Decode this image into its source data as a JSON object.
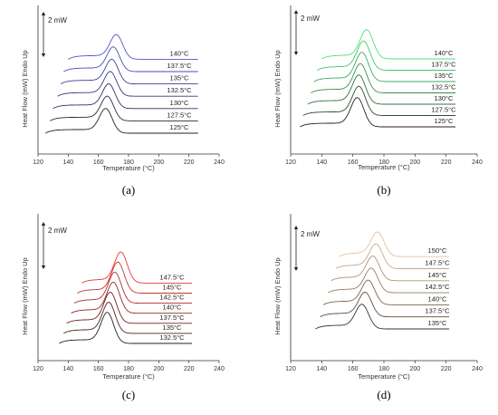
{
  "chart_data": [
    {
      "type": "line",
      "panel_label": "(a)",
      "xlabel": "Temperature (°C)",
      "ylabel": "Heat Flow (mW) Endo Up",
      "xlim": [
        120,
        240
      ],
      "xticks": [
        120,
        140,
        160,
        180,
        200,
        220,
        240
      ],
      "scale_bar": "2 mW",
      "yticks": "none",
      "grid": false,
      "series": [
        {
          "name": "125°C",
          "start_x": 125,
          "peak_x": 165,
          "end_x": 226,
          "color": "#222222"
        },
        {
          "name": "127.5°C",
          "start_x": 128,
          "peak_x": 166,
          "end_x": 226,
          "color": "#2a2a40"
        },
        {
          "name": "130°C",
          "start_x": 130,
          "peak_x": 167,
          "end_x": 226,
          "color": "#303060"
        },
        {
          "name": "132.5°C",
          "start_x": 133,
          "peak_x": 168,
          "end_x": 226,
          "color": "#38387e"
        },
        {
          "name": "135°C",
          "start_x": 135,
          "peak_x": 169,
          "end_x": 226,
          "color": "#40409a"
        },
        {
          "name": "137.5°C",
          "start_x": 137,
          "peak_x": 170,
          "end_x": 226,
          "color": "#4a4ab4"
        },
        {
          "name": "140°C",
          "start_x": 140,
          "peak_x": 172,
          "end_x": 226,
          "color": "#5555cc"
        }
      ]
    },
    {
      "type": "line",
      "panel_label": "(b)",
      "xlabel": "Temperature (°C)",
      "ylabel": "Heat Flow (mW) Endo Up",
      "xlim": [
        120,
        240
      ],
      "xticks": [
        120,
        140,
        160,
        180,
        200,
        220,
        240
      ],
      "scale_bar": "2 mW",
      "yticks": "none",
      "grid": false,
      "series": [
        {
          "name": "125°C",
          "start_x": 126,
          "peak_x": 163,
          "end_x": 226,
          "color": "#222222"
        },
        {
          "name": "127.5°C",
          "start_x": 128,
          "peak_x": 164,
          "end_x": 226,
          "color": "#2d4a34"
        },
        {
          "name": "130°C",
          "start_x": 131,
          "peak_x": 164,
          "end_x": 226,
          "color": "#307040"
        },
        {
          "name": "132.5°C",
          "start_x": 133,
          "peak_x": 165,
          "end_x": 226,
          "color": "#35904c"
        },
        {
          "name": "135°C",
          "start_x": 135,
          "peak_x": 166,
          "end_x": 226,
          "color": "#3aae5a"
        },
        {
          "name": "137.5°C",
          "start_x": 137,
          "peak_x": 167,
          "end_x": 226,
          "color": "#40c868"
        },
        {
          "name": "140°C",
          "start_x": 140,
          "peak_x": 169,
          "end_x": 226,
          "color": "#4ee07a"
        }
      ]
    },
    {
      "type": "line",
      "panel_label": "(c)",
      "xlabel": "Temperature (°C)",
      "ylabel": "Heat Flow (mW) Endo Up",
      "xlim": [
        120,
        240
      ],
      "xticks": [
        120,
        140,
        160,
        180,
        200,
        220,
        240
      ],
      "scale_bar": "2 mW",
      "yticks": "none",
      "grid": false,
      "series": [
        {
          "name": "132.5°C",
          "start_x": 134,
          "peak_x": 166,
          "end_x": 222,
          "color": "#222222"
        },
        {
          "name": "135°C",
          "start_x": 137,
          "peak_x": 167,
          "end_x": 222,
          "color": "#4a2222"
        },
        {
          "name": "137.5°C",
          "start_x": 139,
          "peak_x": 168,
          "end_x": 222,
          "color": "#6e2424"
        },
        {
          "name": "140°C",
          "start_x": 142,
          "peak_x": 170,
          "end_x": 222,
          "color": "#902828"
        },
        {
          "name": "142.5°C",
          "start_x": 144,
          "peak_x": 171,
          "end_x": 222,
          "color": "#b02c2c"
        },
        {
          "name": "145°C",
          "start_x": 146,
          "peak_x": 173,
          "end_x": 222,
          "color": "#cc3232"
        },
        {
          "name": "147.5°C",
          "start_x": 149,
          "peak_x": 175,
          "end_x": 222,
          "color": "#e33a3a"
        }
      ]
    },
    {
      "type": "line",
      "panel_label": "(d)",
      "xlabel": "Temperature (°C)",
      "ylabel": "Heat Flow (mW) Endo Up",
      "xlim": [
        120,
        240
      ],
      "xticks": [
        120,
        140,
        160,
        180,
        200,
        220,
        240
      ],
      "scale_bar": "2 mW",
      "yticks": "none",
      "grid": false,
      "series": [
        {
          "name": "135°C",
          "start_x": 136,
          "peak_x": 166,
          "end_x": 222,
          "color": "#333333"
        },
        {
          "name": "137.5°C",
          "start_x": 139,
          "peak_x": 168,
          "end_x": 222,
          "color": "#5a4e44"
        },
        {
          "name": "140°C",
          "start_x": 141,
          "peak_x": 170,
          "end_x": 222,
          "color": "#7a6650"
        },
        {
          "name": "142.5°C",
          "start_x": 144,
          "peak_x": 172,
          "end_x": 222,
          "color": "#967e64"
        },
        {
          "name": "145°C",
          "start_x": 146,
          "peak_x": 173,
          "end_x": 222,
          "color": "#b09474"
        },
        {
          "name": "147.5°C",
          "start_x": 149,
          "peak_x": 175,
          "end_x": 222,
          "color": "#c8aa88"
        },
        {
          "name": "150°C",
          "start_x": 151,
          "peak_x": 176,
          "end_x": 222,
          "color": "#e2c4a0"
        }
      ]
    }
  ]
}
